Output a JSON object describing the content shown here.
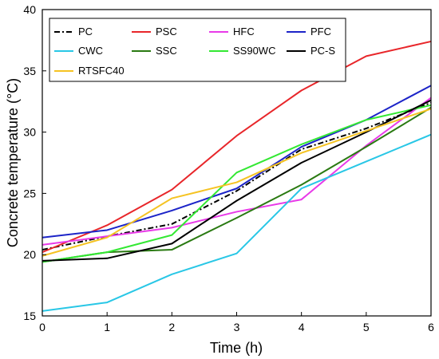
{
  "chart_data": {
    "type": "line",
    "xlabel": "Time (h)",
    "ylabel": "Concrete temperature (°C)",
    "xlim": [
      0,
      6
    ],
    "ylim": [
      15,
      40
    ],
    "x_ticks": [
      "0",
      "1",
      "2",
      "3",
      "4",
      "5",
      "6"
    ],
    "y_ticks": [
      "15",
      "20",
      "25",
      "30",
      "35",
      "40"
    ],
    "grid": false,
    "legend_placement": "top-left",
    "x": [
      0,
      1,
      2,
      3,
      4,
      5,
      6
    ],
    "series": [
      {
        "name": "PC",
        "color": "#000000",
        "dash": "dash-dot",
        "values": [
          20.4,
          21.5,
          22.5,
          25.2,
          28.6,
          30.3,
          32.4
        ]
      },
      {
        "name": "PSC",
        "color": "#e8262a",
        "dash": "solid",
        "values": [
          20.2,
          22.4,
          25.3,
          29.7,
          33.4,
          36.2,
          37.4
        ]
      },
      {
        "name": "HFC",
        "color": "#e83ae8",
        "dash": "solid",
        "values": [
          20.8,
          21.5,
          22.2,
          23.5,
          24.5,
          28.9,
          32.8
        ]
      },
      {
        "name": "PFC",
        "color": "#1c24c8",
        "dash": "solid",
        "values": [
          21.4,
          22.0,
          23.6,
          25.4,
          28.8,
          31.0,
          33.8
        ]
      },
      {
        "name": "CWC",
        "color": "#29c7e6",
        "dash": "solid",
        "values": [
          15.4,
          16.1,
          18.4,
          20.1,
          25.4,
          27.6,
          29.8
        ]
      },
      {
        "name": "SSC",
        "color": "#2a7a12",
        "dash": "solid",
        "values": [
          19.4,
          20.2,
          20.4,
          23.0,
          25.7,
          28.8,
          32.0
        ]
      },
      {
        "name": "SS90WC",
        "color": "#33e833",
        "dash": "solid",
        "values": [
          19.4,
          20.2,
          21.6,
          26.7,
          29.0,
          31.0,
          32.2
        ]
      },
      {
        "name": "PC-S",
        "color": "#000000",
        "dash": "solid",
        "values": [
          19.5,
          19.7,
          20.9,
          24.4,
          27.5,
          30.0,
          32.6
        ]
      },
      {
        "name": "RTSFC40",
        "color": "#f5c322",
        "dash": "solid",
        "values": [
          19.9,
          21.4,
          24.6,
          25.9,
          28.3,
          30.1,
          31.9
        ]
      }
    ]
  }
}
